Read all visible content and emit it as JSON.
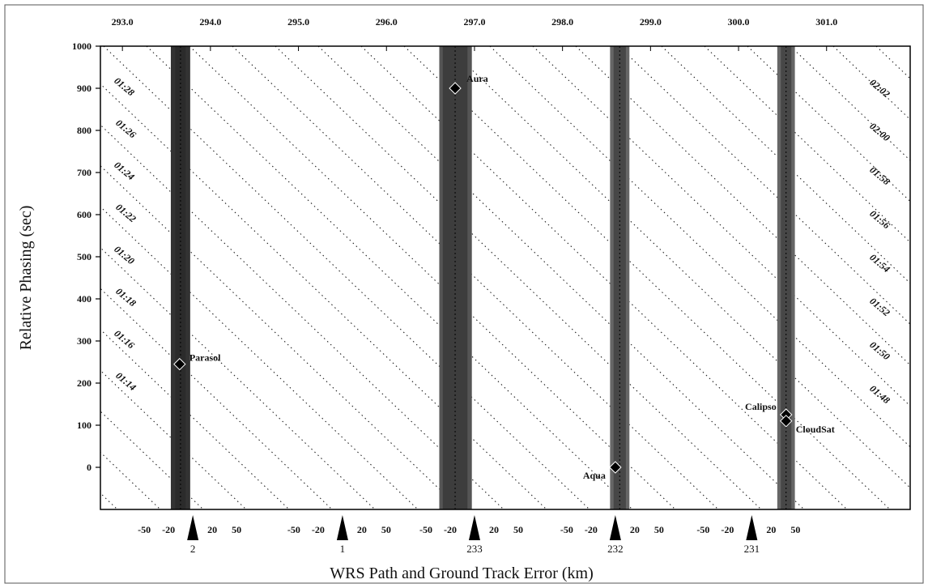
{
  "chart_data": {
    "type": "scatter",
    "ylabel": "Relative Phasing (sec)",
    "xlabel": "WRS Path and Ground Track Error (km)",
    "ylim": [
      -100,
      1000
    ],
    "y_ticks": [
      1000,
      900,
      800,
      700,
      600,
      500,
      400,
      300,
      200,
      100,
      0
    ],
    "x_top_range": [
      292.75,
      301.95
    ],
    "x_top_ticks": [
      "293.0",
      "294.0",
      "295.0",
      "296.0",
      "297.0",
      "298.0",
      "299.0",
      "300.0",
      "301.0"
    ],
    "wrs_paths": [
      {
        "path": "2",
        "center": 293.8,
        "km_ticks": [
          "-50",
          "-20",
          "20",
          "50"
        ]
      },
      {
        "path": "1",
        "center": 295.5,
        "km_ticks": [
          "-50",
          "-20",
          "20",
          "50"
        ]
      },
      {
        "path": "233",
        "center": 297.0,
        "km_ticks": [
          "-50",
          "-20",
          "20",
          "50"
        ]
      },
      {
        "path": "232",
        "center": 298.6,
        "km_ticks": [
          "-50",
          "-20",
          "20",
          "50"
        ]
      },
      {
        "path": "231",
        "center": 300.15,
        "km_ticks": [
          "-50",
          "-20",
          "20",
          "50"
        ]
      }
    ],
    "bands": [
      {
        "x0": 293.55,
        "x1": 293.77,
        "shade": "#333333",
        "inner_x0": 293.6,
        "inner_x1": 293.72
      },
      {
        "x0": 296.6,
        "x1": 296.97,
        "shade": "#555555",
        "inner_x0": 296.64,
        "inner_x1": 296.92
      },
      {
        "x0": 298.54,
        "x1": 298.76,
        "shade": "#666666",
        "inner_x0": 298.58,
        "inner_x1": 298.72
      },
      {
        "x0": 300.44,
        "x1": 300.64,
        "shade": "#666666",
        "inner_x0": 300.48,
        "inner_x1": 300.6
      }
    ],
    "satellites": [
      {
        "name": "Parasol",
        "x": 293.65,
        "y": 245,
        "label_anchor": "right"
      },
      {
        "name": "Aura",
        "x": 296.78,
        "y": 900,
        "label_anchor": "right"
      },
      {
        "name": "Aqua",
        "x": 298.6,
        "y": 0,
        "label_anchor": "left"
      },
      {
        "name": "Calipso",
        "x": 300.54,
        "y": 125,
        "label_anchor": "left"
      },
      {
        "name": "CloudSat",
        "x": 300.54,
        "y": 110,
        "label_anchor": "right"
      }
    ],
    "time_labels_left": [
      "01:28",
      "01:26",
      "01:24",
      "01:22",
      "01:20",
      "01:18",
      "01:16",
      "01:14"
    ],
    "time_labels_right": [
      "02:02",
      "02:00",
      "01:58",
      "01:56",
      "01:54",
      "01:52",
      "01:50",
      "01:48"
    ],
    "grid": false
  }
}
